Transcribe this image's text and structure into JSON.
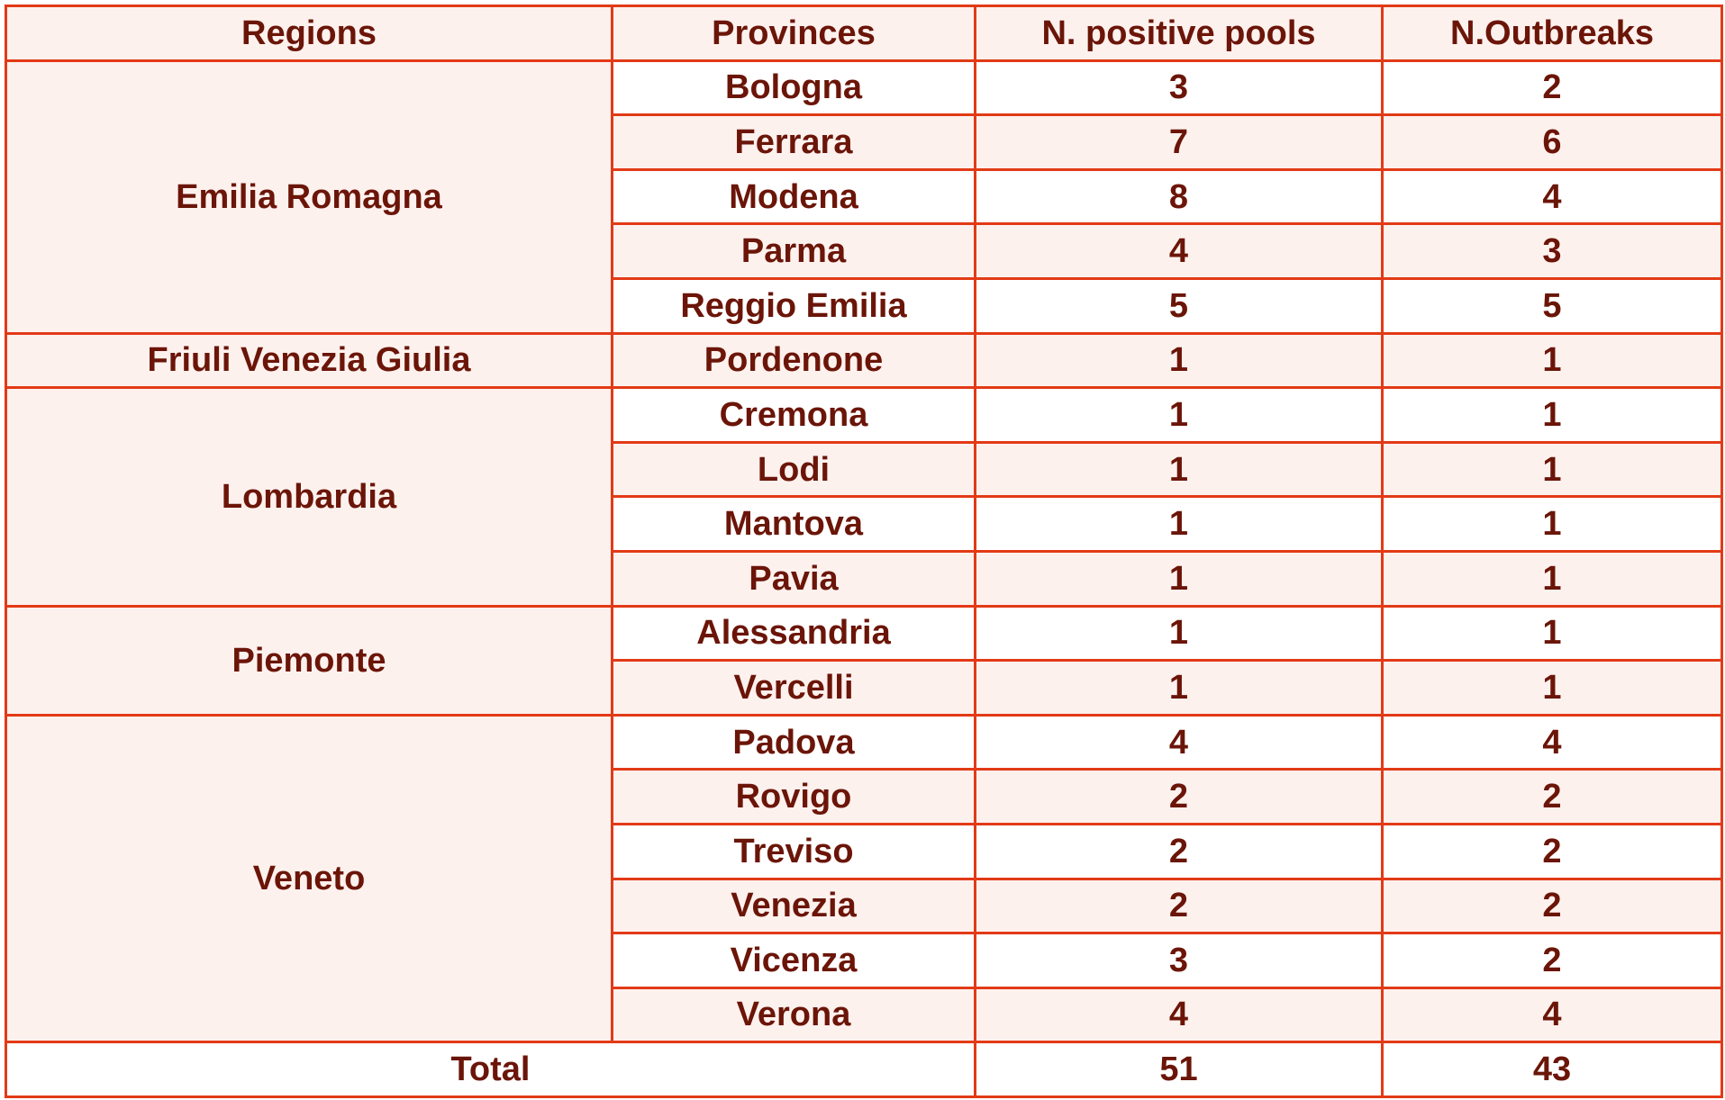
{
  "headers": {
    "region": "Regions",
    "province": "Provinces",
    "pools": "N. positive pools",
    "outbreaks": "N.Outbreaks"
  },
  "regions": [
    {
      "name": "Emilia Romagna",
      "provinces": [
        {
          "name": "Bologna",
          "pools": "3",
          "outbreaks": "2"
        },
        {
          "name": "Ferrara",
          "pools": "7",
          "outbreaks": "6"
        },
        {
          "name": "Modena",
          "pools": "8",
          "outbreaks": "4"
        },
        {
          "name": "Parma",
          "pools": "4",
          "outbreaks": "3"
        },
        {
          "name": "Reggio Emilia",
          "pools": "5",
          "outbreaks": "5"
        }
      ]
    },
    {
      "name": "Friuli Venezia Giulia",
      "provinces": [
        {
          "name": "Pordenone",
          "pools": "1",
          "outbreaks": "1"
        }
      ]
    },
    {
      "name": "Lombardia",
      "provinces": [
        {
          "name": "Cremona",
          "pools": "1",
          "outbreaks": "1"
        },
        {
          "name": "Lodi",
          "pools": "1",
          "outbreaks": "1"
        },
        {
          "name": "Mantova",
          "pools": "1",
          "outbreaks": "1"
        },
        {
          "name": "Pavia",
          "pools": "1",
          "outbreaks": "1"
        }
      ]
    },
    {
      "name": "Piemonte",
      "provinces": [
        {
          "name": "Alessandria",
          "pools": "1",
          "outbreaks": "1"
        },
        {
          "name": "Vercelli",
          "pools": "1",
          "outbreaks": "1"
        }
      ]
    },
    {
      "name": "Veneto",
      "provinces": [
        {
          "name": "Padova",
          "pools": "4",
          "outbreaks": "4"
        },
        {
          "name": "Rovigo",
          "pools": "2",
          "outbreaks": "2"
        },
        {
          "name": "Treviso",
          "pools": "2",
          "outbreaks": "2"
        },
        {
          "name": "Venezia",
          "pools": "2",
          "outbreaks": "2"
        },
        {
          "name": "Vicenza",
          "pools": "3",
          "outbreaks": "2"
        },
        {
          "name": "Verona",
          "pools": "4",
          "outbreaks": "4"
        }
      ]
    }
  ],
  "total": {
    "label": "Total",
    "pools": "51",
    "outbreaks": "43"
  },
  "colors": {
    "border": "#e23a16",
    "text": "#6b1508",
    "tint": "#fdf1ee",
    "white": "#ffffff"
  }
}
